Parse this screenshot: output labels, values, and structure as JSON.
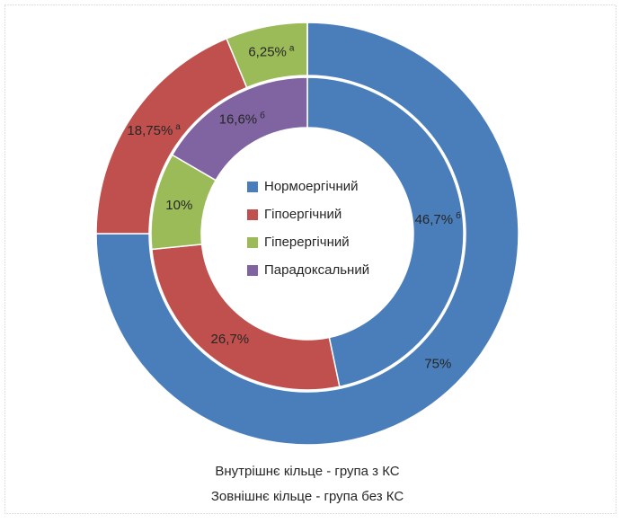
{
  "chart_data": {
    "type": "doughnut",
    "categories": [
      "Нормоергічний",
      "Гіпоергічний",
      "Гіперергічний",
      "Парадоксальний"
    ],
    "colors": [
      "#4a7ebb",
      "#c0504d",
      "#9bbb59",
      "#8064a2"
    ],
    "rings": [
      {
        "values": [
          46.7,
          26.7,
          10,
          16.6
        ],
        "value_labels": [
          "46,7%",
          "26,7%",
          "10%",
          "16,6%"
        ],
        "notes": [
          "б",
          null,
          null,
          "б"
        ]
      },
      {
        "values": [
          75,
          18.75,
          6.25,
          0
        ],
        "value_labels": [
          "75%",
          "18,75%",
          "6,25%",
          null
        ],
        "notes": [
          null,
          "а",
          "а",
          null
        ]
      }
    ],
    "caption": [
      "Внутрішнє кільце - група з КС",
      "Зовнішнє кільце - група без КС"
    ]
  }
}
